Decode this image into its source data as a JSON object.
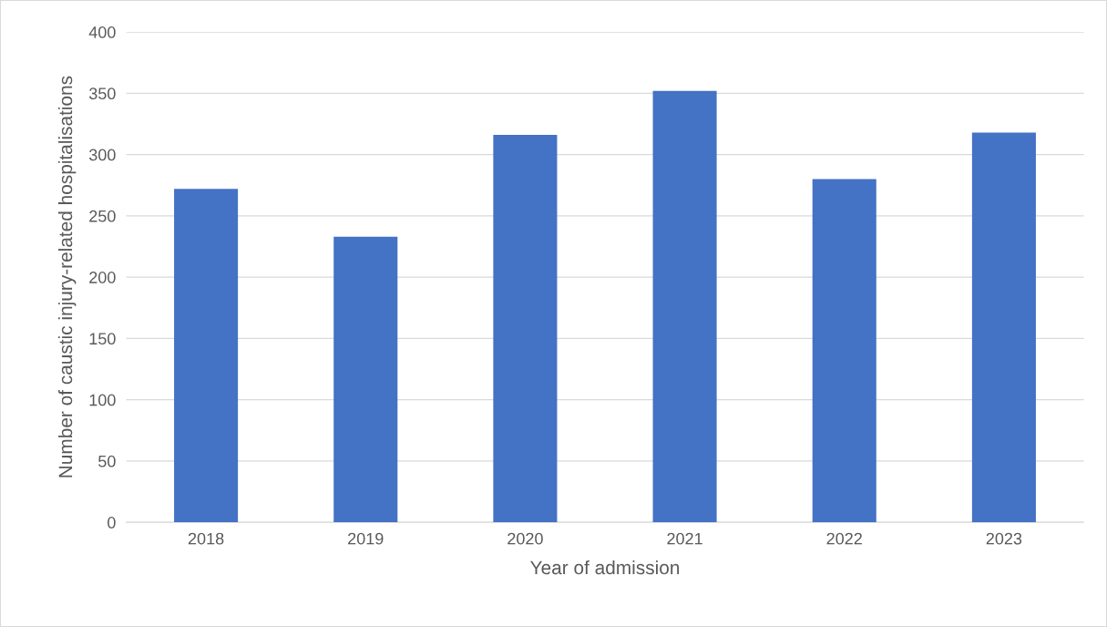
{
  "chart_data": {
    "type": "bar",
    "xlabel": "Year of admission",
    "ylabel": "Number of caustic injury-related hospitalisations",
    "categories": [
      "2018",
      "2019",
      "2020",
      "2021",
      "2022",
      "2023"
    ],
    "values": [
      272,
      233,
      316,
      352,
      280,
      318
    ],
    "color": "#4472c4",
    "ylim": [
      0,
      400
    ],
    "yticks": [
      0,
      50,
      100,
      150,
      200,
      250,
      300,
      350,
      400
    ],
    "grid": "y",
    "legend": false
  }
}
